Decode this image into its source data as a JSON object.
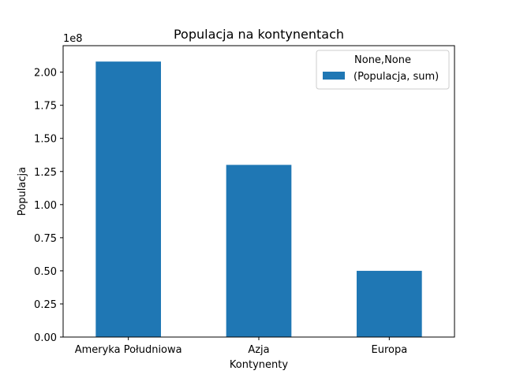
{
  "chart_data": {
    "type": "bar",
    "title": "Populacja na kontynentach",
    "xlabel": "Kontynenty",
    "ylabel": "Populacja",
    "scale_label": "1e8",
    "categories": [
      "Ameryka Południowa",
      "Azja",
      "Europa"
    ],
    "series": [
      {
        "name": "(Populacja, sum)",
        "values": [
          208000000,
          130000000,
          50000000
        ]
      }
    ],
    "ylim": [
      0,
      220000000
    ],
    "yticks": [
      0,
      25000000,
      50000000,
      75000000,
      100000000,
      125000000,
      150000000,
      175000000,
      200000000
    ],
    "ytick_labels": [
      "0.00",
      "0.25",
      "0.50",
      "0.75",
      "1.00",
      "1.25",
      "1.50",
      "1.75",
      "2.00"
    ],
    "bar_color": "#1f77b4",
    "grid": false,
    "legend": {
      "title": "None,None",
      "placement": "top-right"
    }
  }
}
